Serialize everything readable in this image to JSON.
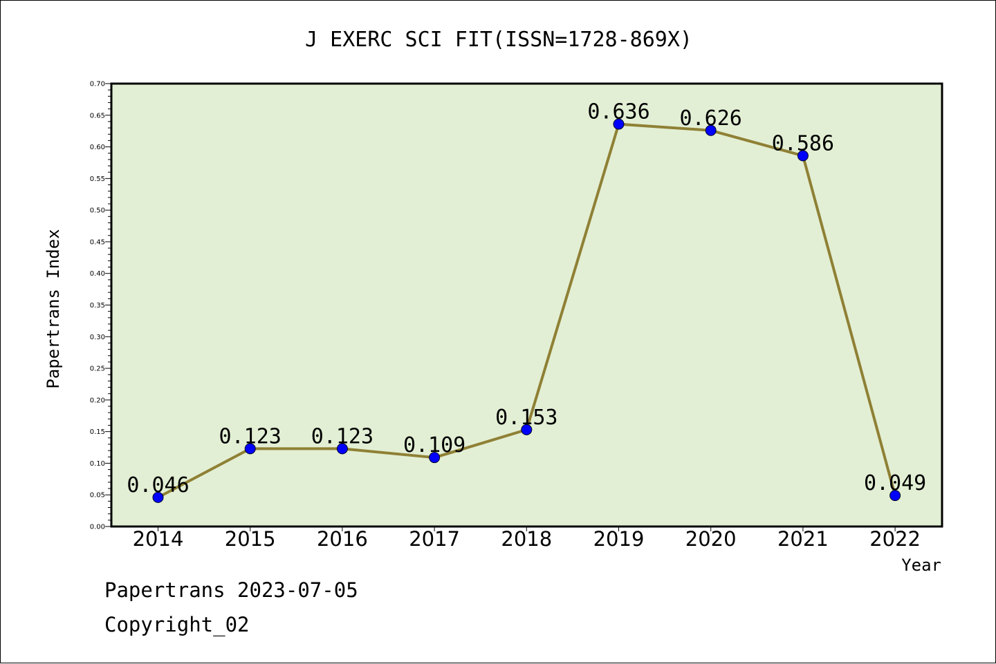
{
  "chart_data": {
    "type": "line",
    "title": "J EXERC SCI FIT(ISSN=1728-869X)",
    "xlabel": "Year",
    "ylabel": "Papertrans Index",
    "categories": [
      "2014",
      "2015",
      "2016",
      "2017",
      "2018",
      "2019",
      "2020",
      "2021",
      "2022"
    ],
    "series": [
      {
        "values": [
          0.046,
          0.123,
          0.123,
          0.109,
          0.153,
          0.636,
          0.626,
          0.586,
          0.049
        ],
        "labels": [
          "0.046",
          "0.123",
          "0.123",
          "0.109",
          "0.153",
          "0.636",
          "0.626",
          "0.586",
          "0.049"
        ]
      }
    ],
    "ylim": [
      0,
      0.7
    ],
    "yticks": [
      "0.00",
      "0.05",
      "0.10",
      "0.15",
      "0.20",
      "0.25",
      "0.30",
      "0.35",
      "0.40",
      "0.45",
      "0.50",
      "0.55",
      "0.60",
      "0.65",
      "0.70"
    ],
    "grid": false,
    "legend": "none",
    "colors": {
      "plot_background": "#e2efd4",
      "line": "#8f8035",
      "marker": "#0000ff"
    }
  },
  "footer": {
    "line1": "Papertrans 2023-07-05",
    "line2": "Copyright_02"
  }
}
